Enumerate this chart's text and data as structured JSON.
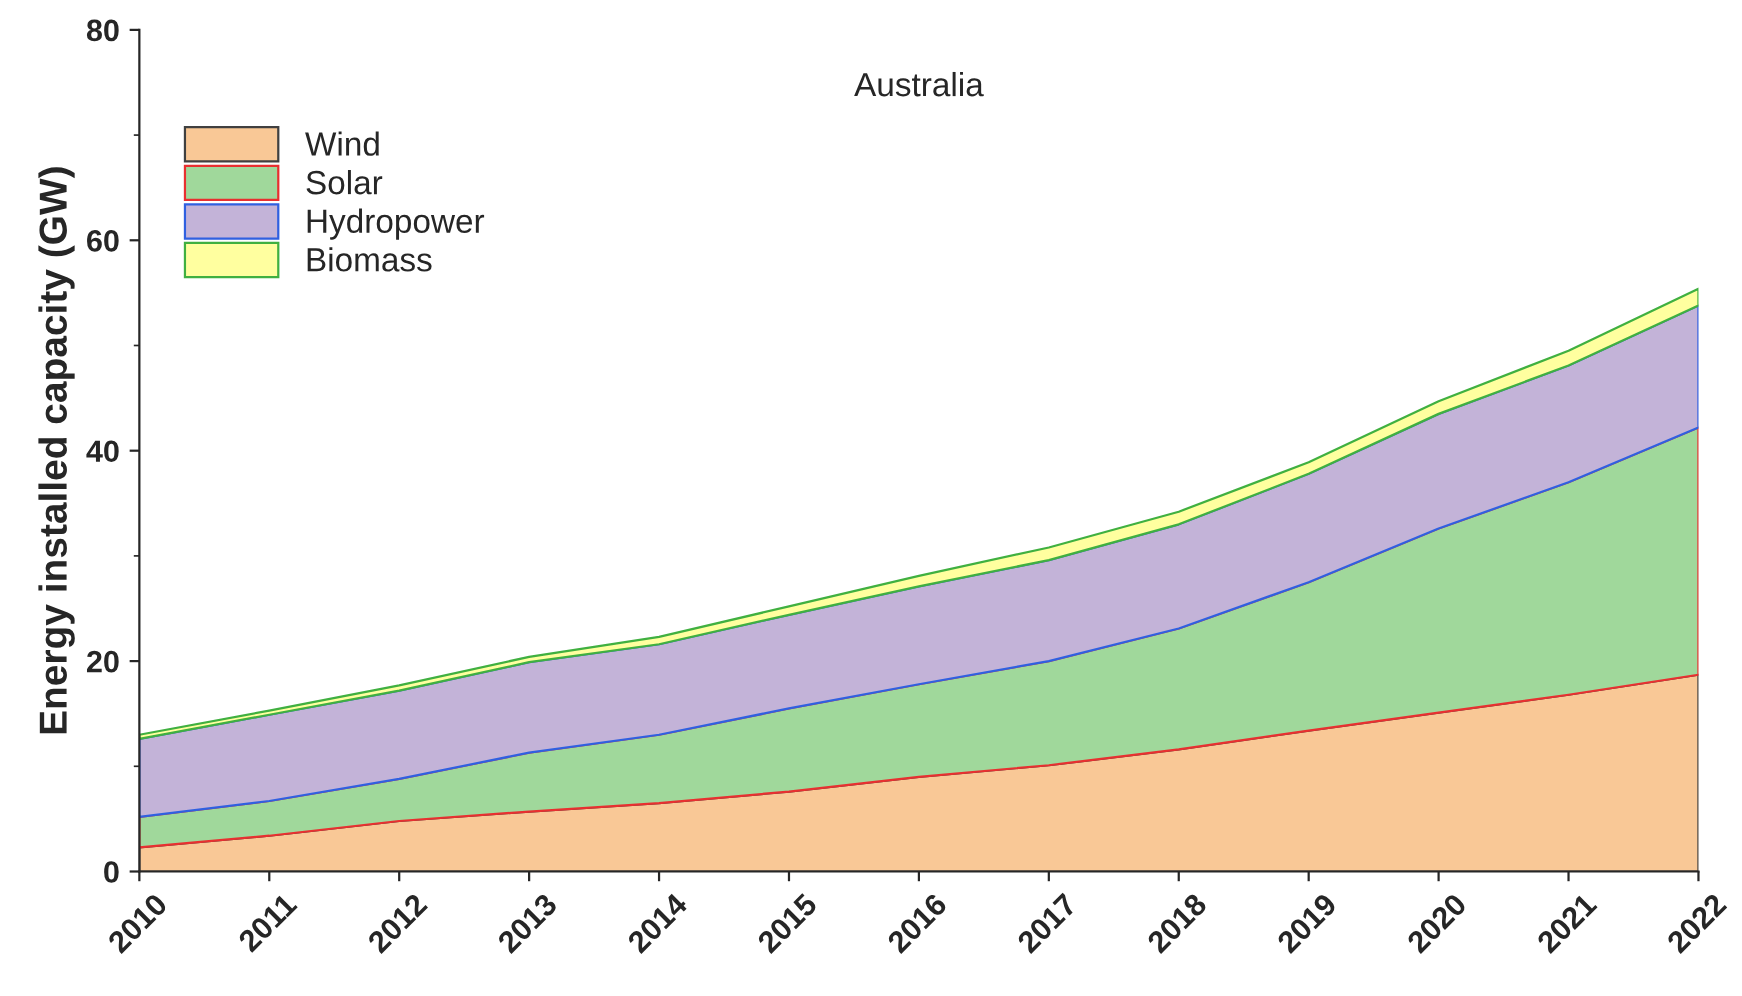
{
  "chart_data": {
    "type": "area",
    "stacked": true,
    "title": "Australia",
    "ylabel": "Energy installed capacity (GW)",
    "x": [
      2010,
      2011,
      2012,
      2013,
      2014,
      2015,
      2016,
      2017,
      2018,
      2019,
      2020,
      2021,
      2022
    ],
    "series": [
      {
        "name": "Wind",
        "color": "#f9c896",
        "values": [
          2.3,
          3.4,
          4.8,
          5.7,
          6.5,
          7.6,
          9.0,
          10.1,
          11.6,
          13.4,
          15.1,
          16.8,
          18.7
        ]
      },
      {
        "name": "Solar",
        "color": "#a0d89b",
        "values": [
          2.9,
          3.3,
          4.0,
          5.6,
          6.5,
          7.9,
          8.8,
          9.9,
          11.5,
          14.1,
          17.5,
          20.2,
          23.5
        ]
      },
      {
        "name": "Hydropower",
        "color": "#c3b3d8",
        "values": [
          7.4,
          8.2,
          8.4,
          8.6,
          8.6,
          8.9,
          9.3,
          9.6,
          9.9,
          10.3,
          10.9,
          11.1,
          11.6
        ]
      },
      {
        "name": "Biomass",
        "color": "#ffff9f",
        "values": [
          0.4,
          0.4,
          0.5,
          0.5,
          0.7,
          0.8,
          1.0,
          1.2,
          1.2,
          1.1,
          1.2,
          1.4,
          1.6
        ]
      }
    ],
    "xlim": [
      2010,
      2022
    ],
    "xticks": [
      2010,
      2011,
      2012,
      2013,
      2014,
      2015,
      2016,
      2017,
      2018,
      2019,
      2020,
      2021,
      2022
    ],
    "ylim": [
      0,
      80
    ],
    "yticks": [
      0,
      20,
      40,
      60,
      80
    ],
    "grid": false,
    "legend": "top left"
  }
}
